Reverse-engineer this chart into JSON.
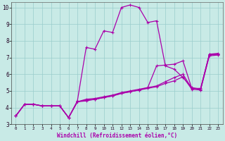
{
  "xlabel": "Windchill (Refroidissement éolien,°C)",
  "bg_color": "#c8eae6",
  "line_color": "#aa00aa",
  "grid_color": "#99cccc",
  "xlim": [
    -0.5,
    23.5
  ],
  "ylim": [
    3,
    10.3
  ],
  "xticks": [
    0,
    1,
    2,
    3,
    4,
    5,
    6,
    7,
    8,
    9,
    10,
    11,
    12,
    13,
    14,
    15,
    16,
    17,
    18,
    19,
    20,
    21,
    22,
    23
  ],
  "yticks": [
    3,
    4,
    5,
    6,
    7,
    8,
    9,
    10
  ],
  "series": [
    {
      "x": [
        0,
        1,
        2,
        3,
        4,
        5,
        6,
        7,
        8,
        9,
        10,
        11,
        12,
        13,
        14,
        15,
        16,
        17,
        18,
        19,
        20,
        21,
        22,
        23
      ],
      "y": [
        3.5,
        4.2,
        4.2,
        4.1,
        4.1,
        4.1,
        3.4,
        4.4,
        7.6,
        7.5,
        8.6,
        8.5,
        10.0,
        10.15,
        10.0,
        9.1,
        9.2,
        6.5,
        6.3,
        5.8,
        5.2,
        5.1,
        7.2,
        7.2
      ]
    },
    {
      "x": [
        0,
        1,
        2,
        3,
        4,
        5,
        6,
        7,
        8,
        9,
        10,
        11,
        12,
        13,
        14,
        15,
        16,
        17,
        18,
        19,
        20,
        21,
        22,
        23
      ],
      "y": [
        3.5,
        4.2,
        4.2,
        4.1,
        4.1,
        4.1,
        3.4,
        4.35,
        4.5,
        4.55,
        4.65,
        4.75,
        4.9,
        5.0,
        5.1,
        5.2,
        6.5,
        6.55,
        6.6,
        6.8,
        5.15,
        5.15,
        7.2,
        7.25
      ]
    },
    {
      "x": [
        0,
        1,
        2,
        3,
        4,
        5,
        6,
        7,
        8,
        9,
        10,
        11,
        12,
        13,
        14,
        15,
        16,
        17,
        18,
        19,
        20,
        21,
        22,
        23
      ],
      "y": [
        3.5,
        4.2,
        4.2,
        4.1,
        4.1,
        4.1,
        3.4,
        4.35,
        4.45,
        4.5,
        4.6,
        4.7,
        4.85,
        4.95,
        5.05,
        5.2,
        5.3,
        5.55,
        5.8,
        6.0,
        5.15,
        5.1,
        7.15,
        7.2
      ]
    },
    {
      "x": [
        0,
        1,
        2,
        3,
        4,
        5,
        6,
        7,
        8,
        9,
        10,
        11,
        12,
        13,
        14,
        15,
        16,
        17,
        18,
        19,
        20,
        21,
        22,
        23
      ],
      "y": [
        3.5,
        4.2,
        4.2,
        4.1,
        4.1,
        4.1,
        3.4,
        4.35,
        4.4,
        4.5,
        4.6,
        4.7,
        4.85,
        4.95,
        5.05,
        5.15,
        5.25,
        5.45,
        5.6,
        5.85,
        5.1,
        5.05,
        7.1,
        7.15
      ]
    }
  ]
}
